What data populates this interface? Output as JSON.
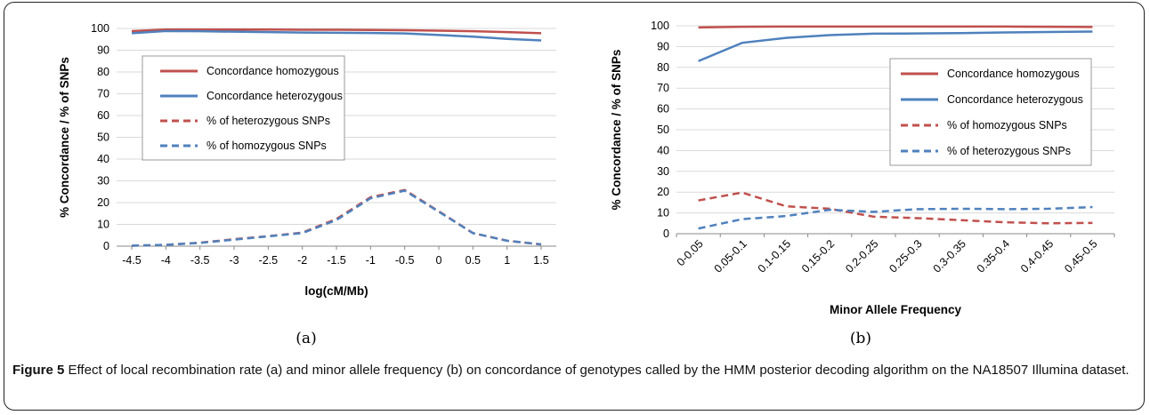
{
  "chart_data": [
    {
      "type": "line",
      "x": [
        -4.5,
        -4,
        -3.5,
        -3,
        -2.5,
        -2,
        -1.5,
        -1,
        -0.5,
        0,
        0.5,
        1,
        1.5
      ],
      "x_ticks": [
        "-4.5",
        "-4",
        "-3.5",
        "-3",
        "-2.5",
        "-2",
        "-1.5",
        "-1",
        "-0.5",
        "0",
        "0.5",
        "1",
        "1.5"
      ],
      "series": [
        {
          "name": "Concordance homozygous",
          "color": "#c0504d",
          "dash": "solid",
          "values": [
            98.8,
            99.5,
            99.5,
            99.5,
            99.5,
            99.4,
            99.4,
            99.3,
            99.2,
            99.0,
            98.7,
            98.3,
            97.8
          ]
        },
        {
          "name": "Concordance heterozygous",
          "color": "#4f81bd",
          "dash": "solid",
          "values": [
            97.8,
            98.8,
            98.7,
            98.5,
            98.3,
            98.1,
            98.0,
            97.9,
            97.7,
            97.0,
            96.2,
            95.2,
            94.5
          ]
        },
        {
          "name": "% of heterozygous SNPs",
          "color": "#c0504d",
          "dash": "dashed",
          "values": [
            0.2,
            0.6,
            1.6,
            3.2,
            4.6,
            6.2,
            12.5,
            22.5,
            25.8,
            16.0,
            6.0,
            2.5,
            0.8
          ]
        },
        {
          "name": "% of homozygous SNPs",
          "color": "#4f81bd",
          "dash": "dashed",
          "values": [
            0.2,
            0.6,
            1.5,
            3.0,
            4.5,
            6.0,
            12.0,
            22.0,
            25.5,
            15.8,
            6.0,
            2.5,
            0.8
          ]
        }
      ],
      "xlabel": "log(cM/Mb)",
      "ylabel": "% Concordance / % of SNPs",
      "ylim": [
        0,
        100
      ],
      "y_ticks": [
        0,
        10,
        20,
        30,
        40,
        50,
        60,
        70,
        80,
        90,
        100
      ],
      "grid": "horizontal",
      "legend": "upper-left"
    },
    {
      "type": "line",
      "categories": [
        "0-0.05",
        "0.05-0.1",
        "0.1-0.15",
        "0.15-0.2",
        "0.2-0.25",
        "0.25-0.3",
        "0.3-0.35",
        "0.35-0.4",
        "0.4-0.45",
        "0.45-0.5"
      ],
      "series": [
        {
          "name": "Concordance homozygous",
          "color": "#c0504d",
          "dash": "solid",
          "values": [
            99.2,
            99.5,
            99.6,
            99.6,
            99.6,
            99.6,
            99.6,
            99.6,
            99.5,
            99.4
          ]
        },
        {
          "name": "Concordance heterozygous",
          "color": "#4f81bd",
          "dash": "solid",
          "values": [
            83.0,
            91.8,
            94.2,
            95.5,
            96.2,
            96.3,
            96.5,
            96.8,
            97.0,
            97.2
          ]
        },
        {
          "name": "% of homozygous SNPs",
          "color": "#c0504d",
          "dash": "dashed",
          "values": [
            16.0,
            19.8,
            13.2,
            12.0,
            8.2,
            7.5,
            6.5,
            5.5,
            5.0,
            5.2
          ]
        },
        {
          "name": "% of heterozygous SNPs",
          "color": "#4f81bd",
          "dash": "dashed",
          "values": [
            2.5,
            7.0,
            8.5,
            11.5,
            10.5,
            11.8,
            12.0,
            11.8,
            12.0,
            12.8
          ]
        }
      ],
      "xlabel": "Minor Allele Frequency",
      "ylabel": "% Concordance / % of SNPs",
      "ylim": [
        0,
        100
      ],
      "y_ticks": [
        0,
        10,
        20,
        30,
        40,
        50,
        60,
        70,
        80,
        90,
        100
      ],
      "grid": "horizontal",
      "legend": "center-right"
    }
  ],
  "sublabels": [
    "(a)",
    "(b)"
  ],
  "caption": {
    "figure": "Figure 5",
    "text": " Effect of local recombination rate (a) and minor allele frequency (b) on concordance of genotypes called by the HMM posterior decoding algorithm on the NA18507 Illumina dataset."
  }
}
